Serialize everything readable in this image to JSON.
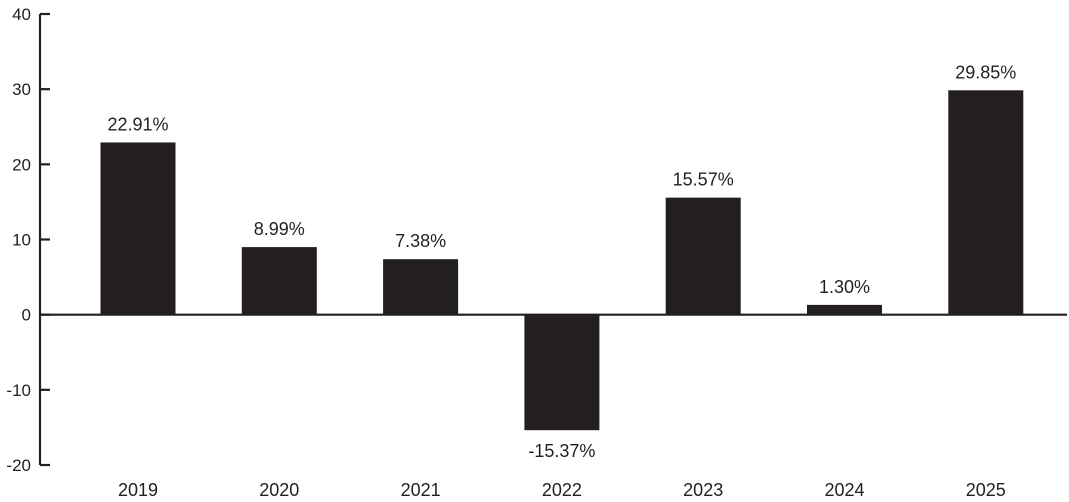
{
  "chart_data": {
    "type": "bar",
    "categories": [
      "2019",
      "2020",
      "2021",
      "2022",
      "2023",
      "2024",
      "2025"
    ],
    "values": [
      22.91,
      8.99,
      7.38,
      -15.37,
      15.57,
      1.3,
      29.85
    ],
    "data_labels": [
      "22.91%",
      "8.99%",
      "7.38%",
      "-15.37%",
      "15.57%",
      "1.30%",
      "29.85%"
    ],
    "ylim": [
      -20,
      40
    ],
    "yticks": [
      -20,
      -10,
      0,
      10,
      20,
      30,
      40
    ],
    "ytick_labels": [
      "-20",
      "-10",
      "0",
      "10",
      "20",
      "30",
      "40"
    ],
    "title": "",
    "xlabel": "",
    "ylabel": "",
    "grid": false,
    "legend": "none",
    "bar_color": "#231f20",
    "axis_color": "#231f20"
  }
}
